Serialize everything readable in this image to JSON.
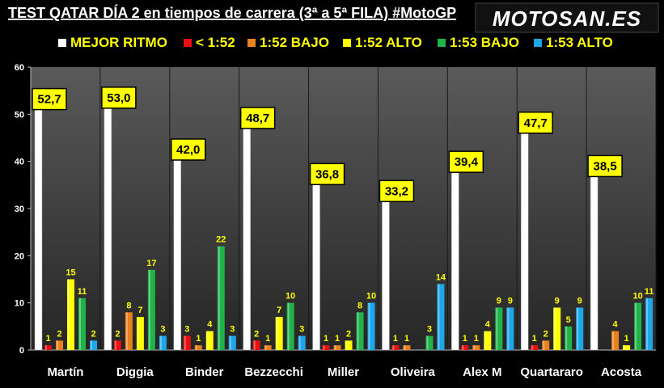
{
  "brand": {
    "logo_text": "MOTOSAN.ES"
  },
  "chart_data": {
    "type": "bar",
    "title": "TEST QATAR DÍA 2 en tiempos de carrera (3ª a 5ª FILA) #MotoGP",
    "categories": [
      "Martín",
      "Diggia",
      "Binder",
      "Bezzecchi",
      "Miller",
      "Oliveira",
      "Alex M",
      "Quartararo",
      "Acosta"
    ],
    "ylim": [
      0,
      60
    ],
    "yticks": [
      0,
      10,
      20,
      30,
      40,
      50,
      60
    ],
    "grid": "vertical-separators",
    "legend_position": "top",
    "series": [
      {
        "name": "MEJOR RITMO",
        "color": "#ffffff",
        "values": [
          52.7,
          53.0,
          42.0,
          48.7,
          36.8,
          33.2,
          39.4,
          47.7,
          38.5
        ],
        "labels": [
          "52,7",
          "53,0",
          "42,0",
          "48,7",
          "36,8",
          "33,2",
          "39,4",
          "47,7",
          "38,5"
        ]
      },
      {
        "name": "< 1:52",
        "color": "#e81010",
        "values": [
          1,
          2,
          3,
          2,
          1,
          1,
          1,
          1,
          0
        ],
        "labels": [
          "1",
          "2",
          "3",
          "2",
          "1",
          "1",
          "1",
          "1",
          ""
        ]
      },
      {
        "name": "1:52 BAJO",
        "color": "#e8801e",
        "values": [
          2,
          8,
          1,
          1,
          1,
          1,
          1,
          2,
          4
        ],
        "labels": [
          "2",
          "8",
          "1",
          "1",
          "1",
          "1",
          "1",
          "2",
          "4"
        ]
      },
      {
        "name": "1:52 ALTO",
        "color": "#ffff00",
        "values": [
          15,
          7,
          4,
          7,
          2,
          0,
          4,
          9,
          1
        ],
        "labels": [
          "15",
          "7",
          "4",
          "7",
          "2",
          "",
          "4",
          "9",
          "1"
        ]
      },
      {
        "name": "1:53 BAJO",
        "color": "#1fb34a",
        "values": [
          11,
          17,
          22,
          10,
          8,
          3,
          9,
          5,
          10
        ],
        "labels": [
          "11",
          "17",
          "22",
          "10",
          "8",
          "3",
          "9",
          "5",
          "10"
        ]
      },
      {
        "name": "1:53 ALTO",
        "color": "#1ea7e8",
        "values": [
          2,
          3,
          3,
          3,
          10,
          14,
          9,
          9,
          11
        ],
        "labels": [
          "2",
          "3",
          "3",
          "3",
          "10",
          "14",
          "9",
          "9",
          "11"
        ]
      }
    ]
  }
}
